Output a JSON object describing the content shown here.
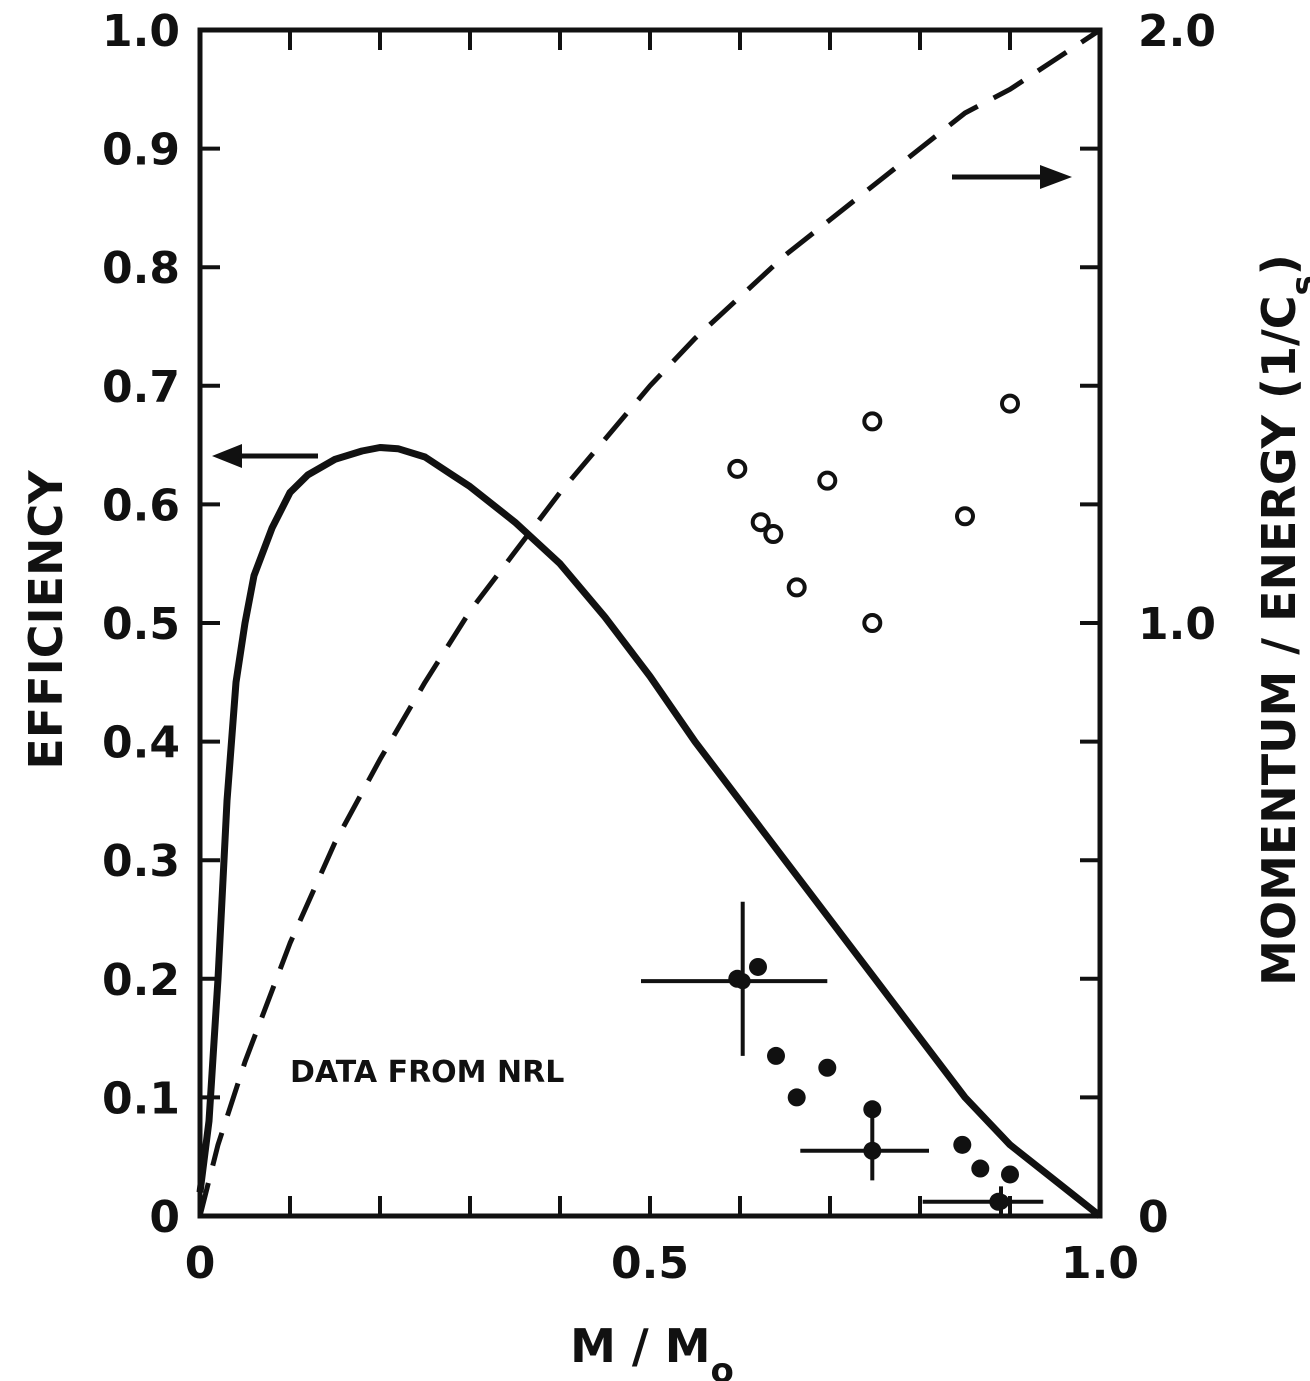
{
  "chart_data": {
    "type": "scatter",
    "title": "",
    "xlabel": "M / M",
    "xlabel_sub": "o",
    "ylabel_left": "EFFICIENCY",
    "ylabel_right": "MOMENTUM / ENERGY  (1/C",
    "ylabel_right_sub": "s",
    "ylabel_right_close": ")",
    "xlim": [
      0,
      1.0
    ],
    "ylim_left": [
      0,
      1.0
    ],
    "ylim_right": [
      0,
      2.0
    ],
    "x_tick_labels": [
      {
        "value": 0,
        "label": "0"
      },
      {
        "value": 0.5,
        "label": "0.5"
      },
      {
        "value": 1.0,
        "label": "1.0"
      }
    ],
    "y_left_tick_labels": [
      {
        "value": 0,
        "label": "0"
      },
      {
        "value": 0.1,
        "label": "0.1"
      },
      {
        "value": 0.2,
        "label": "0.2"
      },
      {
        "value": 0.3,
        "label": "0.3"
      },
      {
        "value": 0.4,
        "label": "0.4"
      },
      {
        "value": 0.5,
        "label": "0.5"
      },
      {
        "value": 0.6,
        "label": "0.6"
      },
      {
        "value": 0.7,
        "label": "0.7"
      },
      {
        "value": 0.8,
        "label": "0.8"
      },
      {
        "value": 0.9,
        "label": "0.9"
      },
      {
        "value": 1.0,
        "label": "1.0"
      }
    ],
    "y_right_tick_labels": [
      {
        "value": 0,
        "label": "0"
      },
      {
        "value": 1.0,
        "label": "1.0"
      },
      {
        "value": 2.0,
        "label": "2.0"
      }
    ],
    "annotation": "DATA FROM NRL",
    "series": [
      {
        "style": "solid",
        "axis": "left",
        "x": [
          0,
          0.01,
          0.02,
          0.03,
          0.04,
          0.05,
          0.06,
          0.08,
          0.1,
          0.12,
          0.15,
          0.18,
          0.2,
          0.22,
          0.25,
          0.28,
          0.3,
          0.35,
          0.4,
          0.45,
          0.5,
          0.55,
          0.6,
          0.65,
          0.7,
          0.75,
          0.8,
          0.85,
          0.9,
          0.95,
          1.0
        ],
        "y": [
          0.02,
          0.08,
          0.2,
          0.35,
          0.45,
          0.5,
          0.54,
          0.58,
          0.61,
          0.625,
          0.638,
          0.645,
          0.648,
          0.647,
          0.64,
          0.625,
          0.615,
          0.585,
          0.55,
          0.505,
          0.455,
          0.4,
          0.35,
          0.3,
          0.25,
          0.2,
          0.15,
          0.1,
          0.06,
          0.03,
          0.0
        ]
      },
      {
        "style": "dashed",
        "axis": "right",
        "x": [
          0,
          0.02,
          0.05,
          0.08,
          0.1,
          0.15,
          0.2,
          0.25,
          0.3,
          0.35,
          0.4,
          0.45,
          0.5,
          0.55,
          0.6,
          0.65,
          0.7,
          0.75,
          0.8,
          0.85,
          0.9,
          0.95,
          1.0
        ],
        "y": [
          0.0,
          0.12,
          0.26,
          0.38,
          0.46,
          0.63,
          0.77,
          0.9,
          1.02,
          1.12,
          1.22,
          1.31,
          1.4,
          1.48,
          1.55,
          1.62,
          1.68,
          1.74,
          1.8,
          1.86,
          1.9,
          1.95,
          2.0
        ]
      },
      {
        "style": "open-circles",
        "axis": "left",
        "x": [
          0.597,
          0.623,
          0.637,
          0.663,
          0.697,
          0.747,
          0.747,
          0.85,
          0.9
        ],
        "y": [
          0.63,
          0.585,
          0.575,
          0.53,
          0.62,
          0.67,
          0.5,
          0.59,
          0.685
        ]
      },
      {
        "style": "filled-circles",
        "axis": "left",
        "x": [
          0.597,
          0.62,
          0.64,
          0.663,
          0.697,
          0.747,
          0.747,
          0.847,
          0.867,
          0.9,
          0.887
        ],
        "y": [
          0.2,
          0.21,
          0.135,
          0.1,
          0.125,
          0.09,
          0.055,
          0.06,
          0.04,
          0.035,
          0.012
        ]
      }
    ],
    "error_bars": [
      {
        "x": 0.603,
        "y": 0.198,
        "x_err": [
          0.49,
          0.697
        ],
        "y_err": [
          0.135,
          0.265
        ]
      },
      {
        "x": 0.747,
        "y": 0.055,
        "x_err": [
          0.667,
          0.81
        ],
        "y_err": [
          0.03,
          0.085
        ]
      },
      {
        "x": 0.89,
        "y": 0.012,
        "x_err": [
          0.803,
          0.937
        ],
        "y_err": [
          0.0,
          0.025
        ]
      }
    ]
  }
}
